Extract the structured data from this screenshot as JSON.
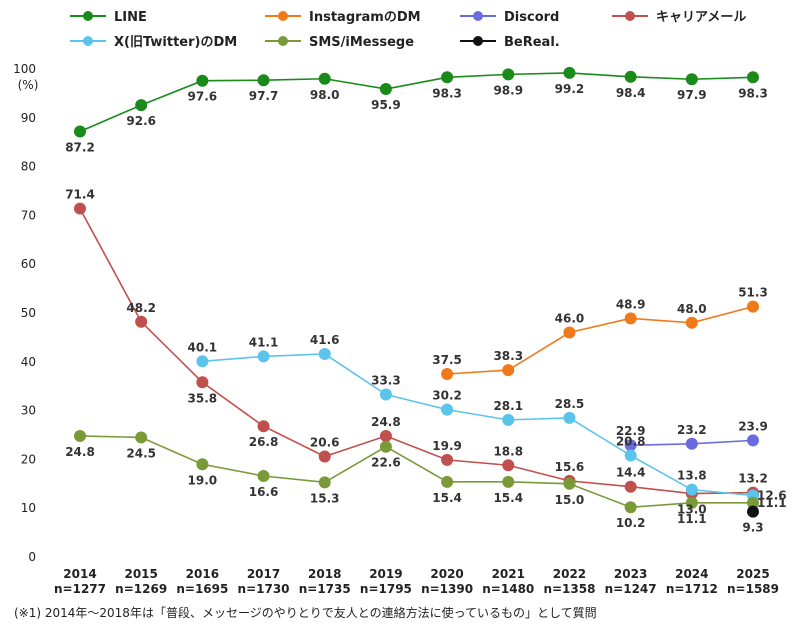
{
  "chart_data": {
    "type": "line",
    "unit_label": "(%)",
    "ylim": [
      0,
      100
    ],
    "yticks": [
      0,
      10,
      20,
      30,
      40,
      50,
      60,
      70,
      80,
      90,
      100
    ],
    "grid": false,
    "legend_position": "top",
    "categories": [
      {
        "year": "2014",
        "n": "n=1277"
      },
      {
        "year": "2015",
        "n": "n=1269"
      },
      {
        "year": "2016",
        "n": "n=1695"
      },
      {
        "year": "2017",
        "n": "n=1730"
      },
      {
        "year": "2018",
        "n": "n=1735"
      },
      {
        "year": "2019",
        "n": "n=1795"
      },
      {
        "year": "2020",
        "n": "n=1390"
      },
      {
        "year": "2021",
        "n": "n=1480"
      },
      {
        "year": "2022",
        "n": "n=1358"
      },
      {
        "year": "2023",
        "n": "n=1247"
      },
      {
        "year": "2024",
        "n": "n=1712"
      },
      {
        "year": "2025",
        "n": "n=1589"
      }
    ],
    "series": [
      {
        "name": "LINE",
        "color": "#1a8a1a",
        "values": [
          87.2,
          92.6,
          97.6,
          97.7,
          98.0,
          95.9,
          98.3,
          98.9,
          99.2,
          98.4,
          97.9,
          98.3
        ],
        "label_pos": [
          "below",
          "below",
          "below",
          "below",
          "below",
          "below",
          "below",
          "below",
          "below",
          "below",
          "below",
          "below"
        ]
      },
      {
        "name": "InstagramのDM",
        "color": "#f07a1a",
        "values": [
          null,
          null,
          null,
          null,
          null,
          null,
          37.5,
          38.3,
          46.0,
          48.9,
          48.0,
          51.3
        ],
        "label_pos": [
          "",
          "",
          "",
          "",
          "",
          "",
          "above",
          "above",
          "above",
          "above",
          "above",
          "above"
        ]
      },
      {
        "name": "Discord",
        "color": "#6b6be0",
        "values": [
          null,
          null,
          null,
          null,
          null,
          null,
          null,
          null,
          null,
          22.9,
          23.2,
          23.9
        ],
        "label_pos": [
          "",
          "",
          "",
          "",
          "",
          "",
          "",
          "",
          "",
          "above",
          "above",
          "above"
        ]
      },
      {
        "name": "キャリアメール",
        "color": "#c0504d",
        "values": [
          71.4,
          48.2,
          35.8,
          26.8,
          20.6,
          24.8,
          19.9,
          18.8,
          15.6,
          14.4,
          13.0,
          13.2
        ],
        "label_pos": [
          "above",
          "above",
          "below",
          "below",
          "above",
          "above",
          "above",
          "above",
          "above",
          "above",
          "below",
          "above"
        ]
      },
      {
        "name": "X(旧Twitter)のDM",
        "color": "#5bc4ec",
        "values": [
          null,
          null,
          40.1,
          41.1,
          41.6,
          33.3,
          30.2,
          28.1,
          28.5,
          20.8,
          13.8,
          12.6
        ],
        "label_pos": [
          "",
          "",
          "above",
          "above",
          "above",
          "above",
          "above",
          "above",
          "above",
          "above",
          "above",
          "right"
        ]
      },
      {
        "name": "SMS/iMessege",
        "color": "#7a9a3a",
        "values": [
          24.8,
          24.5,
          19.0,
          16.6,
          15.3,
          22.6,
          15.4,
          15.4,
          15.0,
          10.2,
          11.1,
          11.1
        ],
        "label_pos": [
          "below",
          "below",
          "below",
          "below",
          "below",
          "below",
          "below",
          "below",
          "below",
          "below",
          "below",
          "right"
        ]
      },
      {
        "name": "BeReal.",
        "color": "#111111",
        "values": [
          null,
          null,
          null,
          null,
          null,
          null,
          null,
          null,
          null,
          null,
          null,
          9.3
        ],
        "label_pos": [
          "",
          "",
          "",
          "",
          "",
          "",
          "",
          "",
          "",
          "",
          "",
          "below"
        ]
      }
    ],
    "note": "(※1) 2014年～2018年は「普段、メッセージのやりとりで友人との連絡方法に使っているもの」として質問"
  }
}
